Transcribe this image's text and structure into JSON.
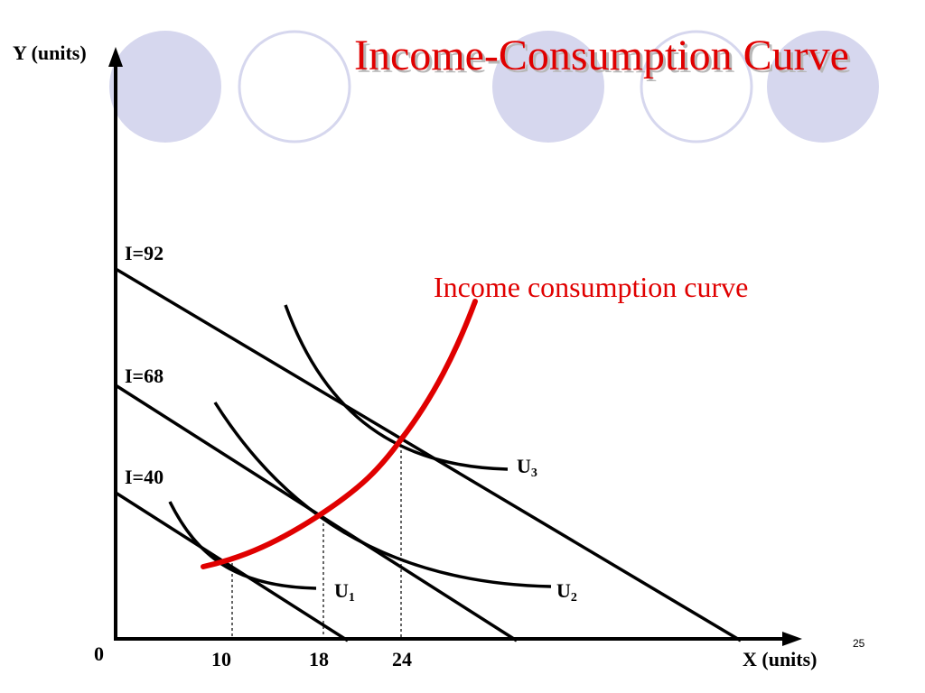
{
  "title": "Income-Consumption Curve",
  "axes": {
    "y_label": "Y (units)",
    "x_label": "X (units)",
    "origin_label": "0",
    "x_ticks": [
      "10",
      "18",
      "24"
    ]
  },
  "budget_lines": [
    {
      "label": "I=92"
    },
    {
      "label": "I=68"
    },
    {
      "label": "I=40"
    }
  ],
  "indifference_curves": [
    {
      "base": "U",
      "sub": "1"
    },
    {
      "base": "U",
      "sub": "2"
    },
    {
      "base": "U",
      "sub": "3"
    }
  ],
  "icc_label": "Income consumption curve",
  "slide_number": "25",
  "colors": {
    "title": "#e00000",
    "icc": "#e00000",
    "decor_filled": "#d6d7ee",
    "decor_outline": "#d6d7ee",
    "axis": "#000000"
  }
}
